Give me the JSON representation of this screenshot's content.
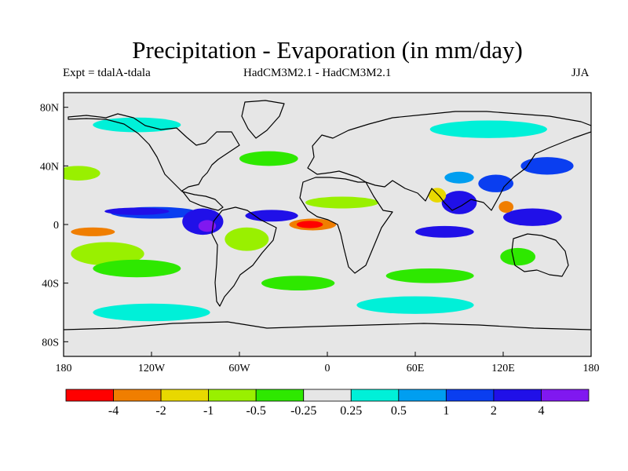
{
  "title": "Precipitation - Evaporation (in mm/day)",
  "subtitle_left": "Expt = tdalA-tdala",
  "subtitle_center": "HadCM3M2.1 - HadCM3M2.1",
  "subtitle_right": "JJA",
  "chart_data": {
    "type": "heatmap",
    "projection": "cylindrical equidistant world map",
    "title": "Precipitation - Evaporation (in mm/day)",
    "xlim": [
      -180,
      180
    ],
    "ylim": [
      -90,
      90
    ],
    "x_ticks": [
      {
        "value": -180,
        "label": "180"
      },
      {
        "value": -120,
        "label": "120W"
      },
      {
        "value": -60,
        "label": "60W"
      },
      {
        "value": 0,
        "label": "0"
      },
      {
        "value": 60,
        "label": "60E"
      },
      {
        "value": 120,
        "label": "120E"
      },
      {
        "value": 180,
        "label": "180"
      }
    ],
    "y_ticks": [
      {
        "value": 80,
        "label": "80N"
      },
      {
        "value": 40,
        "label": "40N"
      },
      {
        "value": 0,
        "label": "0"
      },
      {
        "value": -40,
        "label": "40S"
      },
      {
        "value": -80,
        "label": "80S"
      }
    ],
    "colorbar": {
      "colors": [
        "#ff0000",
        "#f07e00",
        "#e8d800",
        "#99f000",
        "#2ee800",
        "#e6e6e6",
        "#00f0d8",
        "#009ef0",
        "#0a3ef0",
        "#2010e8",
        "#8018f0"
      ],
      "labels": [
        "-4",
        "-2",
        "-1",
        "-0.5",
        "-0.25",
        "0.25",
        "0.5",
        "1",
        "2",
        "4"
      ]
    },
    "anomaly_regions": [
      {
        "name": "itcz-pacific-east",
        "lon": -118,
        "lat": 8,
        "rlon": 30,
        "rlat": 4,
        "level": 8
      },
      {
        "name": "itcz-pacific-core",
        "lon": -130,
        "lat": 9,
        "rlon": 22,
        "rlat": 2.5,
        "level": 9
      },
      {
        "name": "central-america",
        "lon": -85,
        "lat": 2,
        "rlon": 14,
        "rlat": 9,
        "level": 9
      },
      {
        "name": "panama-core",
        "lon": -82,
        "lat": -1,
        "rlon": 6,
        "rlat": 4,
        "level": 10
      },
      {
        "name": "atlantic-itcz",
        "lon": -38,
        "lat": 6,
        "rlon": 18,
        "rlat": 4,
        "level": 9
      },
      {
        "name": "atlantic-dry",
        "lon": -10,
        "lat": 0,
        "rlon": 16,
        "rlat": 4,
        "level": 1
      },
      {
        "name": "atlantic-dry-core",
        "lon": -12,
        "lat": 0,
        "rlon": 9,
        "rlat": 2.5,
        "level": 0
      },
      {
        "name": "indian-ocean-south",
        "lon": 80,
        "lat": -5,
        "rlon": 20,
        "rlat": 4,
        "level": 9
      },
      {
        "name": "bay-of-bengal",
        "lon": 90,
        "lat": 15,
        "rlon": 12,
        "rlat": 8,
        "level": 9
      },
      {
        "name": "west-pacific",
        "lon": 140,
        "lat": 5,
        "rlon": 20,
        "rlat": 6,
        "level": 9
      },
      {
        "name": "south-china",
        "lon": 115,
        "lat": 28,
        "rlon": 12,
        "rlat": 6,
        "level": 8
      },
      {
        "name": "nw-pacific",
        "lon": 150,
        "lat": 40,
        "rlon": 18,
        "rlat": 6,
        "level": 8
      },
      {
        "name": "equatorial-pacific-dry",
        "lon": -160,
        "lat": -5,
        "rlon": 15,
        "rlat": 3,
        "level": 1
      },
      {
        "name": "south-pacific-dry",
        "lon": -150,
        "lat": -20,
        "rlon": 25,
        "rlat": 8,
        "level": 3
      },
      {
        "name": "south-pacific-band",
        "lon": -130,
        "lat": -30,
        "rlon": 30,
        "rlat": 6,
        "level": 4
      },
      {
        "name": "southern-ocean-cyan",
        "lon": -120,
        "lat": -60,
        "rlon": 40,
        "rlat": 6,
        "level": 6
      },
      {
        "name": "south-indian-cyan",
        "lon": 60,
        "lat": -55,
        "rlon": 40,
        "rlat": 6,
        "level": 6
      },
      {
        "name": "south-indian-green",
        "lon": 70,
        "lat": -35,
        "rlon": 30,
        "rlat": 5,
        "level": 4
      },
      {
        "name": "south-atlantic-green",
        "lon": -20,
        "lat": -40,
        "rlon": 25,
        "rlat": 5,
        "level": 4
      },
      {
        "name": "amazon-green",
        "lon": -55,
        "lat": -10,
        "rlon": 15,
        "rlat": 8,
        "level": 3
      },
      {
        "name": "sahel-green",
        "lon": 10,
        "lat": 15,
        "rlon": 25,
        "rlat": 4,
        "level": 3
      },
      {
        "name": "arctic-cyan",
        "lon": -130,
        "lat": 68,
        "rlon": 30,
        "rlat": 5,
        "level": 6
      },
      {
        "name": "siberia-cyan",
        "lon": 110,
        "lat": 65,
        "rlon": 40,
        "rlat": 6,
        "level": 6
      },
      {
        "name": "north-atlantic-green",
        "lon": -40,
        "lat": 45,
        "rlon": 20,
        "rlat": 5,
        "level": 4
      },
      {
        "name": "north-pacific-green",
        "lon": -170,
        "lat": 35,
        "rlon": 15,
        "rlat": 5,
        "level": 3
      },
      {
        "name": "india-dry",
        "lon": 75,
        "lat": 20,
        "rlon": 6,
        "rlat": 5,
        "level": 2
      },
      {
        "name": "philippines-dry",
        "lon": 122,
        "lat": 12,
        "rlon": 5,
        "rlat": 4,
        "level": 1
      },
      {
        "name": "australia-green",
        "lon": 130,
        "lat": -22,
        "rlon": 12,
        "rlat": 6,
        "level": 4
      },
      {
        "name": "tibet-cyan",
        "lon": 90,
        "lat": 32,
        "rlon": 10,
        "rlat": 4,
        "level": 7
      }
    ]
  }
}
